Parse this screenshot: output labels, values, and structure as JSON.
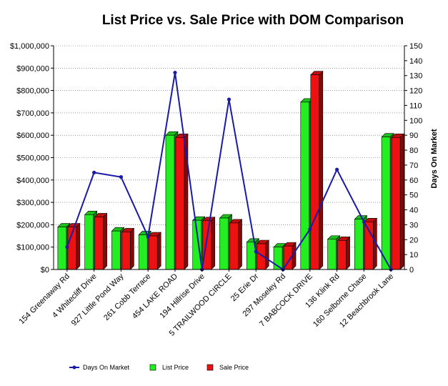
{
  "chart_data": {
    "type": "bar",
    "title": "List Price vs. Sale Price with DOM Comparison",
    "xlabel": "",
    "ylabel": "",
    "y2label": "Days On Market",
    "ylim": [
      0,
      1000000
    ],
    "y2lim": [
      0,
      150
    ],
    "yticks": [
      "$0",
      "$100,000",
      "$200,000",
      "$300,000",
      "$400,000",
      "$500,000",
      "$600,000",
      "$700,000",
      "$800,000",
      "$900,000",
      "$1,000,000"
    ],
    "y2ticks": [
      "0",
      "10",
      "20",
      "30",
      "40",
      "50",
      "60",
      "70",
      "80",
      "90",
      "100",
      "110",
      "120",
      "130",
      "140",
      "150"
    ],
    "grid": true,
    "legend_position": "bottom",
    "categories": [
      "154 Greenaway Rd",
      "4 Whitecliff Drive",
      "927 Little Pond Way",
      "261 Cobb Terrace",
      "454 LAKE ROAD",
      "194 Hillrise Drive",
      "5 TRAILWOOD CIRCLE",
      "25 Erie Dr",
      "297 Moseley Rd",
      "7 BABCOCK DRIVE",
      "136 Klink Rd",
      "160 Selborne Chase",
      "12 Beachbrook Lane"
    ],
    "series": [
      {
        "name": "List Price",
        "kind": "bar",
        "color": "#22ee22",
        "values": [
          190000,
          245000,
          172000,
          155000,
          600000,
          220000,
          230000,
          122000,
          100000,
          748000,
          135000,
          225000,
          592000
        ]
      },
      {
        "name": "Sale Price",
        "kind": "bar",
        "color": "#ee1111",
        "values": [
          190000,
          235000,
          168000,
          150000,
          590000,
          218000,
          208000,
          115000,
          105000,
          870000,
          130000,
          213000,
          590000
        ]
      },
      {
        "name": "Days On Market",
        "kind": "line",
        "axis": "right",
        "color": "#1a1aa8",
        "values": [
          15,
          65,
          62,
          22,
          132,
          0,
          114,
          12,
          0,
          27,
          67,
          32,
          0
        ]
      }
    ]
  }
}
